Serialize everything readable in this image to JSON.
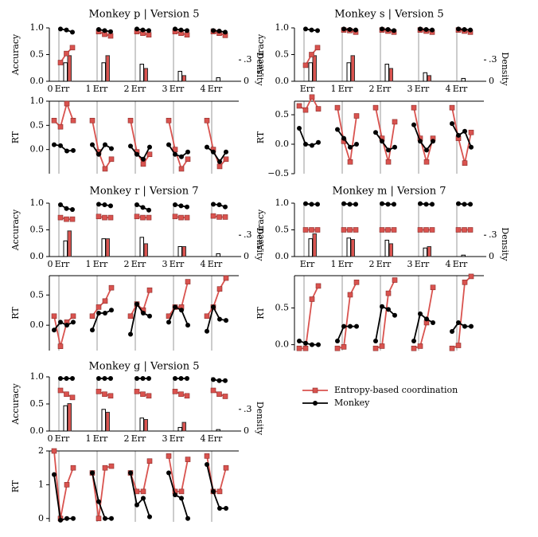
{
  "legend": {
    "series": [
      {
        "name": "Entropy-based coordination",
        "color": "#d9534f",
        "marker": "square"
      },
      {
        "name": "Monkey",
        "color": "#000000",
        "marker": "circle"
      }
    ]
  },
  "chart_data": [
    {
      "type": "line",
      "title": "Monkey p | Version 5",
      "categories": [
        "0",
        "1",
        "2",
        "3",
        "4"
      ],
      "x_suffix": "Err",
      "accuracy": {
        "ylabel": "Accuracy",
        "ylim": [
          0,
          1
        ],
        "yticks": [
          {
            "value": 0,
            "label": "0.0"
          },
          {
            "value": 0.5,
            "label": "0.5"
          },
          {
            "value": 1,
            "label": "1.0"
          }
        ],
        "y2label": "Density",
        "y2lim": [
          0,
          0.75
        ],
        "y2ticks": [
          0,
          {
            "value": 0.3,
            "label": ".3"
          }
        ],
        "series": [
          {
            "values": [
              [
                0.35,
                0.52,
                0.63
              ],
              [
                0.93,
                0.88,
                0.85
              ],
              [
                0.93,
                0.9,
                0.87
              ],
              [
                0.93,
                0.9,
                0.87
              ],
              [
                0.93,
                0.9,
                0.86
              ]
            ]
          },
          {
            "values": [
              [
                0.98,
                0.96,
                0.92
              ],
              [
                0.97,
                0.95,
                0.93
              ],
              [
                0.98,
                0.96,
                0.95
              ],
              [
                0.98,
                0.96,
                0.95
              ],
              [
                0.95,
                0.94,
                0.92
              ]
            ]
          }
        ],
        "density": [
          {
            "values": [
              0.36,
              0.36,
              0.18,
              0.08,
              0
            ]
          },
          {
            "values": [
              0.26,
              0.26,
              0.24,
              0.14,
              0.05
            ]
          }
        ]
      },
      "rt": {
        "ylabel": "RT",
        "ylim": [
          -0.5,
          1.0
        ],
        "yticks": [
          {
            "value": 0,
            "label": "0.0"
          },
          {
            "value": 0.5,
            "label": "0.5"
          },
          {
            "value": 1,
            "label": "1.0"
          }
        ],
        "series": [
          {
            "values": [
              [
                0.6,
                0.47,
                0.95,
                0.6
              ],
              [
                0.6,
                -0.05,
                -0.4,
                -0.2
              ],
              [
                0.6,
                -0.05,
                -0.3,
                -0.1
              ],
              [
                0.6,
                0.0,
                -0.4,
                -0.2
              ],
              [
                0.6,
                0.0,
                -0.35,
                -0.2
              ]
            ]
          },
          {
            "values": [
              [
                0.1,
                0.08,
                -0.03,
                -0.02
              ],
              [
                0.1,
                -0.1,
                0.1,
                0.02
              ],
              [
                0.07,
                -0.1,
                -0.2,
                0.05
              ],
              [
                0.1,
                -0.1,
                -0.15,
                -0.05
              ],
              [
                0.05,
                -0.05,
                -0.25,
                -0.05
              ]
            ]
          }
        ]
      }
    },
    {
      "type": "line",
      "title": "Monkey s | Version 5",
      "categories": [
        null,
        "1",
        "2",
        "3",
        "4"
      ],
      "x_suffix": "Err",
      "accuracy": {
        "ylabel": "Accuracy",
        "ylim": [
          0,
          1
        ],
        "yticks": [
          {
            "value": 0,
            "label": "0.0"
          },
          {
            "value": 0.5,
            "label": "0.5"
          },
          {
            "value": 1,
            "label": "1.0"
          }
        ],
        "y2label": "Density",
        "y2lim": [
          0,
          0.75
        ],
        "y2ticks": [
          0,
          {
            "value": 0.3,
            "label": ".3"
          }
        ],
        "series": [
          {
            "values": [
              [
                0.3,
                0.5,
                0.63
              ],
              [
                0.96,
                0.95,
                0.92
              ],
              [
                0.96,
                0.94,
                0.92
              ],
              [
                0.96,
                0.94,
                0.92
              ],
              [
                0.96,
                0.94,
                0.92
              ]
            ]
          },
          {
            "values": [
              [
                0.98,
                0.96,
                0.95
              ],
              [
                0.98,
                0.97,
                0.96
              ],
              [
                0.98,
                0.97,
                0.95
              ],
              [
                0.98,
                0.97,
                0.96
              ],
              [
                0.98,
                0.97,
                0.96
              ]
            ]
          }
        ],
        "density": [
          {
            "values": [
              0.36,
              0.36,
              0.18,
              0.08,
              0
            ]
          },
          {
            "values": [
              0.26,
              0.26,
              0.24,
              0.12,
              0.04
            ]
          }
        ]
      },
      "rt": {
        "ylabel": "RT",
        "ylim": [
          -0.5,
          0.73
        ],
        "yticks": [
          {
            "value": -0.5,
            "label": "−0.5"
          },
          {
            "value": 0,
            "label": "0.0"
          },
          {
            "value": 0.5,
            "label": "0.5"
          }
        ],
        "series": [
          {
            "values": [
              [
                0.65,
                0.58,
                0.8,
                0.6
              ],
              [
                0.62,
                0.05,
                -0.3,
                0.48
              ],
              [
                0.62,
                0.1,
                -0.3,
                0.38
              ],
              [
                0.62,
                0.1,
                -0.3,
                0.1
              ],
              [
                0.62,
                0.1,
                -0.32,
                0.2
              ]
            ]
          },
          {
            "values": [
              [
                0.27,
                0.0,
                -0.02,
                0.03
              ],
              [
                0.25,
                0.1,
                -0.05,
                0.0
              ],
              [
                0.2,
                0.05,
                -0.1,
                -0.05
              ],
              [
                0.33,
                0.05,
                -0.1,
                0.05
              ],
              [
                0.35,
                0.15,
                0.22,
                -0.05
              ]
            ]
          }
        ]
      }
    },
    {
      "type": "line",
      "title": "Monkey r | Version 7",
      "categories": [
        "0",
        "1",
        "2",
        "3",
        "4"
      ],
      "x_suffix": "Err",
      "accuracy": {
        "ylabel": "Accuracy",
        "ylim": [
          0,
          1
        ],
        "yticks": [
          {
            "value": 0,
            "label": "0.0"
          },
          {
            "value": 0.5,
            "label": "0.5"
          },
          {
            "value": 1,
            "label": "1.0"
          }
        ],
        "y2label": "Density",
        "y2lim": [
          0,
          0.75
        ],
        "y2ticks": [
          0,
          {
            "value": 0.3,
            "label": ".3"
          }
        ],
        "series": [
          {
            "values": [
              [
                0.73,
                0.7,
                0.7
              ],
              [
                0.75,
                0.73,
                0.73
              ],
              [
                0.75,
                0.73,
                0.73
              ],
              [
                0.75,
                0.73,
                0.73
              ],
              [
                0.76,
                0.74,
                0.74
              ]
            ]
          },
          {
            "values": [
              [
                0.97,
                0.9,
                0.88
              ],
              [
                0.98,
                0.97,
                0.95
              ],
              [
                0.97,
                0.92,
                0.87
              ],
              [
                0.97,
                0.95,
                0.93
              ],
              [
                0.98,
                0.97,
                0.93
              ]
            ]
          }
        ],
        "density": [
          {
            "values": [
              0.36,
              0.25,
              0.18,
              0.14,
              0
            ]
          },
          {
            "values": [
              0.22,
              0.25,
              0.27,
              0.14,
              0.04
            ]
          }
        ]
      },
      "rt": {
        "ylabel": "RT",
        "ylim": [
          -0.42,
          0.82
        ],
        "yticks": [
          {
            "value": 0,
            "label": "0.0"
          },
          {
            "value": 0.5,
            "label": "0.5"
          }
        ],
        "series": [
          {
            "values": [
              [
                0.15,
                -0.35,
                0.05,
                0.15
              ],
              [
                0.15,
                0.3,
                0.4,
                0.62
              ],
              [
                0.15,
                0.35,
                0.25,
                0.58
              ],
              [
                0.15,
                0.3,
                0.3,
                0.72
              ],
              [
                0.15,
                0.3,
                0.6,
                0.78
              ]
            ]
          },
          {
            "values": [
              [
                -0.08,
                0.05,
                0.0,
                0.05
              ],
              [
                -0.08,
                0.2,
                0.2,
                0.25
              ],
              [
                -0.15,
                0.35,
                0.2,
                0.15
              ],
              [
                0.05,
                0.3,
                0.25,
                0.0
              ],
              [
                -0.1,
                0.3,
                0.1,
                0.08
              ]
            ]
          }
        ]
      }
    },
    {
      "type": "line",
      "title": "Monkey m | Version 7",
      "categories": [
        null,
        "1",
        "2",
        "3",
        "4"
      ],
      "x_suffix": "Err",
      "accuracy": {
        "ylabel": "Accuracy",
        "ylim": [
          0,
          1
        ],
        "yticks": [
          {
            "value": 0,
            "label": "0.0"
          },
          {
            "value": 0.5,
            "label": "0.5"
          },
          {
            "value": 1,
            "label": "1.0"
          }
        ],
        "y2label": "Density",
        "y2lim": [
          0,
          0.75
        ],
        "y2ticks": [
          0,
          {
            "value": 0.3,
            "label": ".3"
          }
        ],
        "series": [
          {
            "values": [
              [
                0.5,
                0.5,
                0.5
              ],
              [
                0.5,
                0.5,
                0.5
              ],
              [
                0.5,
                0.5,
                0.5
              ],
              [
                0.5,
                0.5,
                0.5
              ],
              [
                0.5,
                0.5,
                0.5
              ]
            ]
          },
          {
            "values": [
              [
                0.99,
                0.98,
                0.98
              ],
              [
                0.99,
                0.98,
                0.98
              ],
              [
                0.99,
                0.98,
                0.98
              ],
              [
                0.99,
                0.98,
                0.98
              ],
              [
                0.99,
                0.98,
                0.98
              ]
            ]
          }
        ],
        "density": [
          {
            "values": [
              0.32,
              0.24,
              0.18,
              0.14,
              0
            ]
          },
          {
            "values": [
              0.25,
              0.26,
              0.23,
              0.12,
              0.02
            ]
          }
        ]
      },
      "rt": {
        "ylabel": "RT",
        "ylim": [
          -0.08,
          0.94
        ],
        "yticks": [
          {
            "value": 0,
            "label": "0.0"
          },
          {
            "value": 0.5,
            "label": "0.5"
          }
        ],
        "series": [
          {
            "values": [
              [
                -0.05,
                -0.05,
                0.62,
                0.8
              ],
              [
                -0.05,
                -0.03,
                0.68,
                0.85
              ],
              [
                -0.05,
                -0.02,
                0.7,
                0.88
              ],
              [
                -0.05,
                -0.02,
                0.3,
                0.78
              ],
              [
                -0.05,
                -0.01,
                0.85,
                0.93
              ]
            ]
          },
          {
            "values": [
              [
                0.05,
                0.02,
                0.0,
                0.0
              ],
              [
                0.05,
                0.25,
                0.25,
                0.25
              ],
              [
                0.05,
                0.52,
                0.48,
                0.4
              ],
              [
                0.05,
                0.42,
                0.35,
                0.3
              ],
              [
                0.18,
                0.3,
                0.25,
                0.25
              ]
            ]
          }
        ]
      }
    },
    {
      "type": "line",
      "title": "Monkey g | Version 5",
      "categories": [
        "0",
        "1",
        "2",
        "3",
        "4"
      ],
      "x_suffix": "Err",
      "accuracy": {
        "ylabel": "Accuracy",
        "ylim": [
          0,
          1
        ],
        "yticks": [
          {
            "value": 0,
            "label": "0.0"
          },
          {
            "value": 0.5,
            "label": "0.5"
          },
          {
            "value": 1,
            "label": "1.0"
          }
        ],
        "y2label": "Density",
        "y2lim": [
          0,
          0.75
        ],
        "y2ticks": [
          0,
          {
            "value": 0.3,
            "label": ".3"
          }
        ],
        "series": [
          {
            "values": [
              [
                0.75,
                0.68,
                0.62
              ],
              [
                0.73,
                0.68,
                0.65
              ],
              [
                0.73,
                0.68,
                0.65
              ],
              [
                0.73,
                0.68,
                0.65
              ],
              [
                0.75,
                0.68,
                0.64
              ]
            ]
          },
          {
            "values": [
              [
                0.97,
                0.97,
                0.97
              ],
              [
                0.97,
                0.97,
                0.97
              ],
              [
                0.97,
                0.97,
                0.97
              ],
              [
                0.97,
                0.97,
                0.97
              ],
              [
                0.95,
                0.93,
                0.93
              ]
            ]
          }
        ],
        "density": [
          {
            "values": [
              0.38,
              0.26,
              0.16,
              0.12,
              0
            ]
          },
          {
            "values": [
              0.35,
              0.3,
              0.18,
              0.05,
              0.02
            ]
          }
        ]
      },
      "rt": {
        "ylabel": "RT",
        "ylim": [
          -0.1,
          2.0
        ],
        "yticks": [
          0,
          1,
          2
        ],
        "series": [
          {
            "values": [
              [
                2.0,
                0.0,
                1.0,
                1.5
              ],
              [
                1.35,
                0.0,
                1.5,
                1.55
              ],
              [
                1.35,
                0.8,
                0.8,
                1.7
              ],
              [
                1.85,
                0.8,
                0.8,
                1.75
              ],
              [
                1.85,
                0.8,
                0.8,
                1.5
              ]
            ]
          },
          {
            "values": [
              [
                1.3,
                -0.05,
                0.0,
                0.0
              ],
              [
                1.35,
                0.5,
                0.0,
                0.0
              ],
              [
                1.35,
                0.4,
                0.6,
                0.05
              ],
              [
                1.35,
                0.7,
                0.6,
                0.0
              ],
              [
                1.6,
                0.8,
                0.3,
                0.3
              ]
            ]
          }
        ]
      }
    }
  ]
}
